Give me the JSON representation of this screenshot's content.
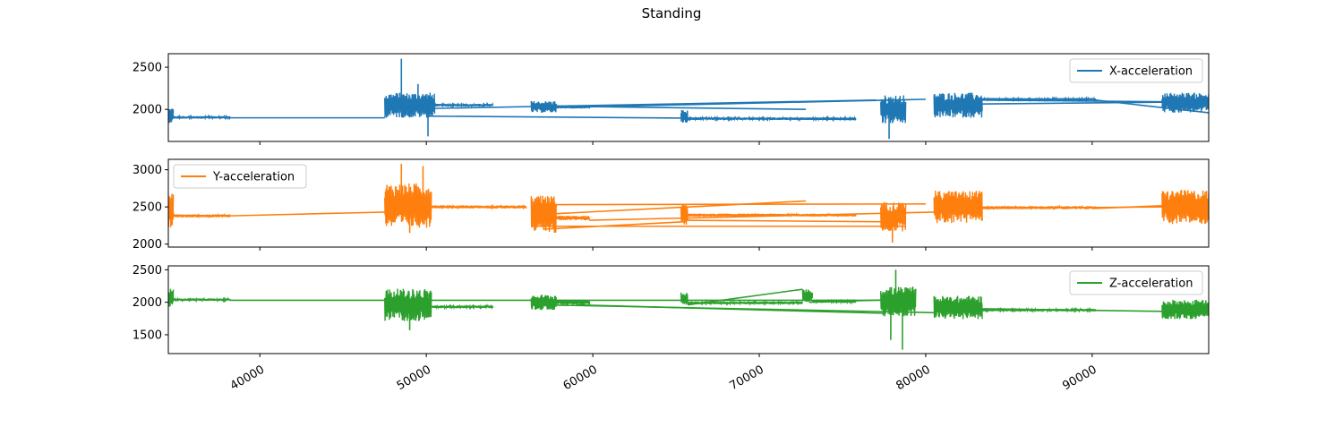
{
  "figure": {
    "title": "Standing"
  },
  "chart_data": [
    {
      "type": "line",
      "series": [
        {
          "name": "X-acceleration",
          "color": "#1f77b4"
        }
      ],
      "legend_loc": "upper right",
      "xlim": [
        34500,
        97000
      ],
      "ylim": [
        1620,
        2660
      ],
      "yticks": [
        2000,
        2500
      ],
      "segments": [
        {
          "x": [
            34500,
            34800
          ],
          "center": 1930,
          "amp": 90
        },
        {
          "x": [
            34800,
            38200
          ],
          "center": 1905,
          "amp": 15
        },
        {
          "x": [
            47500,
            50500
          ],
          "center": 2050,
          "amp": 150
        },
        {
          "x": [
            50500,
            54000
          ],
          "center": 2050,
          "amp": 15
        },
        {
          "x": [
            56300,
            57800
          ],
          "center": 2030,
          "amp": 70
        },
        {
          "x": [
            57800,
            59800
          ],
          "center": 2030,
          "amp": 20
        },
        {
          "x": [
            65300,
            65700
          ],
          "center": 1920,
          "amp": 80
        },
        {
          "x": [
            65700,
            75800
          ],
          "center": 1890,
          "amp": 15
        },
        {
          "x": [
            77300,
            78800
          ],
          "center": 2000,
          "amp": 170
        },
        {
          "x": [
            80500,
            83400
          ],
          "center": 2050,
          "amp": 150
        },
        {
          "x": [
            83400,
            90200
          ],
          "center": 2120,
          "amp": 15
        },
        {
          "x": [
            94200,
            97000
          ],
          "center": 2080,
          "amp": 120
        }
      ],
      "jumps": [
        [
          38200,
          1900,
          47500,
          1900
        ],
        [
          50000,
          1920,
          75800,
          1880
        ],
        [
          50000,
          2010,
          77000,
          2110
        ],
        [
          57000,
          2040,
          72800,
          2000
        ],
        [
          59800,
          2030,
          80000,
          2120
        ],
        [
          83400,
          2110,
          94200,
          2090
        ],
        [
          90200,
          2110,
          97000,
          1960
        ],
        [
          81000,
          2060,
          97000,
          2090
        ]
      ],
      "spikes": [
        [
          48500,
          2600
        ],
        [
          49500,
          2300
        ],
        [
          50100,
          1680
        ],
        [
          77800,
          1650
        ]
      ]
    },
    {
      "type": "line",
      "series": [
        {
          "name": "Y-acceleration",
          "color": "#ff7f0e"
        }
      ],
      "legend_loc": "upper left",
      "xlim": [
        34500,
        97000
      ],
      "ylim": [
        1960,
        3140
      ],
      "yticks": [
        2000,
        2500,
        3000
      ],
      "segments": [
        {
          "x": [
            34500,
            34800
          ],
          "center": 2450,
          "amp": 230
        },
        {
          "x": [
            34800,
            38200
          ],
          "center": 2380,
          "amp": 20
        },
        {
          "x": [
            47500,
            50300
          ],
          "center": 2520,
          "amp": 300
        },
        {
          "x": [
            50300,
            56000
          ],
          "center": 2500,
          "amp": 20
        },
        {
          "x": [
            56300,
            57800
          ],
          "center": 2400,
          "amp": 250
        },
        {
          "x": [
            57800,
            59800
          ],
          "center": 2350,
          "amp": 30
        },
        {
          "x": [
            65300,
            65700
          ],
          "center": 2400,
          "amp": 150
        },
        {
          "x": [
            65700,
            75800
          ],
          "center": 2390,
          "amp": 20
        },
        {
          "x": [
            77300,
            78800
          ],
          "center": 2370,
          "amp": 200
        },
        {
          "x": [
            80500,
            83400
          ],
          "center": 2500,
          "amp": 220
        },
        {
          "x": [
            83400,
            90200
          ],
          "center": 2490,
          "amp": 20
        },
        {
          "x": [
            94200,
            97000
          ],
          "center": 2500,
          "amp": 230
        }
      ],
      "jumps": [
        [
          38200,
          2380,
          47500,
          2430
        ],
        [
          56300,
          2240,
          78800,
          2240
        ],
        [
          57000,
          2530,
          80000,
          2540
        ],
        [
          57000,
          2400,
          72800,
          2580
        ],
        [
          57000,
          2200,
          65500,
          2300
        ],
        [
          65500,
          2320,
          78000,
          2300
        ],
        [
          59800,
          2320,
          80500,
          2430
        ],
        [
          83400,
          2480,
          94200,
          2500
        ],
        [
          90200,
          2480,
          97000,
          2540
        ]
      ],
      "spikes": [
        [
          48500,
          3080
        ],
        [
          49000,
          2150
        ],
        [
          49800,
          3050
        ],
        [
          78000,
          2020
        ]
      ]
    },
    {
      "type": "line",
      "series": [
        {
          "name": "Z-acceleration",
          "color": "#2ca02c"
        }
      ],
      "legend_loc": "upper right",
      "xlim": [
        34500,
        97000
      ],
      "ylim": [
        1210,
        2560
      ],
      "yticks": [
        1500,
        2000,
        2500
      ],
      "segments": [
        {
          "x": [
            34500,
            34800
          ],
          "center": 2060,
          "amp": 150
        },
        {
          "x": [
            34800,
            38200
          ],
          "center": 2040,
          "amp": 20
        },
        {
          "x": [
            47500,
            50300
          ],
          "center": 1960,
          "amp": 250
        },
        {
          "x": [
            50300,
            54000
          ],
          "center": 1930,
          "amp": 20
        },
        {
          "x": [
            56300,
            57800
          ],
          "center": 2000,
          "amp": 120
        },
        {
          "x": [
            57800,
            59800
          ],
          "center": 2000,
          "amp": 40
        },
        {
          "x": [
            65300,
            65700
          ],
          "center": 2060,
          "amp": 100
        },
        {
          "x": [
            65700,
            72600
          ],
          "center": 1990,
          "amp": 20
        },
        {
          "x": [
            72600,
            73200
          ],
          "center": 2100,
          "amp": 100
        },
        {
          "x": [
            73200,
            75800
          ],
          "center": 2010,
          "amp": 20
        },
        {
          "x": [
            77300,
            79400
          ],
          "center": 2010,
          "amp": 230
        },
        {
          "x": [
            80500,
            83400
          ],
          "center": 1920,
          "amp": 180
        },
        {
          "x": [
            83400,
            90200
          ],
          "center": 1880,
          "amp": 20
        },
        {
          "x": [
            94200,
            97000
          ],
          "center": 1890,
          "amp": 150
        }
      ],
      "jumps": [
        [
          38200,
          2030,
          47500,
          2030
        ],
        [
          50000,
          2030,
          79000,
          2030
        ],
        [
          57000,
          1960,
          80500,
          1840
        ],
        [
          59000,
          1960,
          77500,
          1830
        ],
        [
          65700,
          1960,
          72600,
          2200
        ],
        [
          73000,
          2000,
          78000,
          2040
        ],
        [
          83400,
          1900,
          94200,
          1860
        ]
      ],
      "spikes": [
        [
          49000,
          1570
        ],
        [
          78200,
          2500
        ],
        [
          78600,
          1270
        ],
        [
          77900,
          1420
        ]
      ]
    }
  ],
  "x_axis": {
    "ticks": [
      40000,
      50000,
      60000,
      70000,
      80000,
      90000
    ]
  }
}
